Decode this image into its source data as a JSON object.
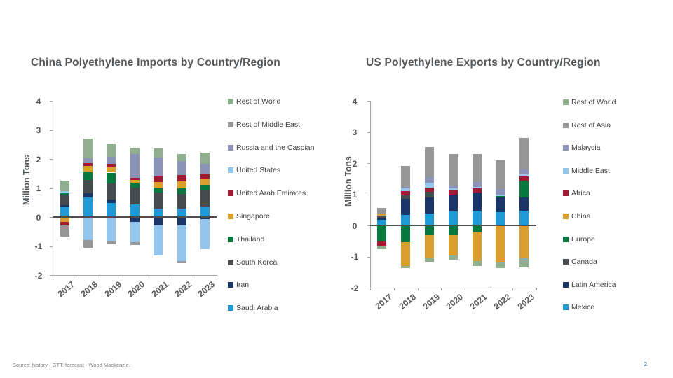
{
  "footer": {
    "source": "Source: history - GTT,  forecast - Wood Mackenzie.",
    "page_number": "2"
  },
  "colors": {
    "title_text": "#54575A",
    "axis_text": "#54575A",
    "legend_text": "#404040",
    "axis_line": "#A6A6A6",
    "zero_line": "#4D4D4D",
    "source_text": "#808080",
    "page_number_text": "#2E74B5"
  },
  "chart_data": [
    {
      "type": "bar",
      "stacked": true,
      "title": "China Polyethylene Imports by Country/Region",
      "ylabel": "Million Tons",
      "xlabel": "",
      "ylim": [
        -2,
        4
      ],
      "yticks": [
        4,
        3,
        2,
        1,
        0,
        -1,
        -2
      ],
      "grid": false,
      "legend_position": "right",
      "categories": [
        "2017",
        "2018",
        "2019",
        "2020",
        "2021",
        "2022",
        "2023"
      ],
      "series_note": "series listed in legend order (top to bottom); bars stack bottom-up in reverse of this order; values in million tons, negatives plotted below zero",
      "series": [
        {
          "name": "Rest of World",
          "color": "#8FAF8F",
          "values": [
            0.38,
            0.67,
            0.44,
            0.21,
            0.33,
            0.24,
            0.37
          ]
        },
        {
          "name": "Rest of Middle East",
          "color": "#969696",
          "values": [
            -0.4,
            -0.25,
            -0.13,
            -0.1,
            0,
            -0.08,
            0
          ]
        },
        {
          "name": "Russia and the Caspian",
          "color": "#8C93B8",
          "values": [
            0,
            0.17,
            0.24,
            0.81,
            0.64,
            0.48,
            0.38
          ]
        },
        {
          "name": "United States",
          "color": "#94C5EC",
          "values": [
            0.07,
            -0.8,
            -0.82,
            -0.68,
            -1.02,
            -1.22,
            -1.04
          ]
        },
        {
          "name": "United Arab Emirates",
          "color": "#A01B32",
          "values": [
            -0.1,
            0.1,
            0.1,
            0.08,
            0.2,
            0.2,
            0.13
          ]
        },
        {
          "name": "Singapore",
          "color": "#D99E2B",
          "values": [
            -0.18,
            0.2,
            0.21,
            0.1,
            0.18,
            0.26,
            0.21
          ]
        },
        {
          "name": "Thailand",
          "color": "#077940",
          "values": [
            0.05,
            0.28,
            0.37,
            0.16,
            0.18,
            0.18,
            0.2
          ]
        },
        {
          "name": "South Korea",
          "color": "#474B4E",
          "values": [
            0.34,
            0.44,
            0.56,
            0.58,
            0.56,
            0.5,
            0.56
          ]
        },
        {
          "name": "Iran",
          "color": "#1A3668",
          "values": [
            0.09,
            0.16,
            0.12,
            -0.18,
            -0.3,
            -0.3,
            -0.08
          ]
        },
        {
          "name": "Saudi Arabia",
          "color": "#1E9AD6",
          "values": [
            0.33,
            0.67,
            0.48,
            0.44,
            0.28,
            0.3,
            0.36
          ]
        }
      ]
    },
    {
      "type": "bar",
      "stacked": true,
      "title": "US Polyethylene Exports by Country/Region",
      "ylabel": "Million Tons",
      "xlabel": "",
      "ylim": [
        -2,
        4
      ],
      "yticks": [
        4,
        3,
        2,
        1,
        0,
        -1,
        -2
      ],
      "grid": false,
      "legend_position": "right",
      "categories": [
        "2017",
        "2018",
        "2019",
        "2020",
        "2021",
        "2022",
        "2023"
      ],
      "series_note": "series listed in legend order (top to bottom); bars stack bottom-up in reverse of this order; values in million tons, negatives plotted below zero",
      "series": [
        {
          "name": "Rest of World",
          "color": "#8FAF8F",
          "values": [
            -0.12,
            -0.07,
            -0.13,
            -0.15,
            -0.16,
            -0.18,
            -0.3
          ]
        },
        {
          "name": "Rest of Asia",
          "color": "#969696",
          "values": [
            0.2,
            0.67,
            0.97,
            1.01,
            0.9,
            0.91,
            1.02
          ]
        },
        {
          "name": "Malaysia",
          "color": "#8C93B8",
          "values": [
            0,
            0.05,
            0.19,
            0.09,
            0.15,
            0.18,
            0.17
          ]
        },
        {
          "name": "Middle East",
          "color": "#94C5EC",
          "values": [
            0,
            0.08,
            0.15,
            0.07,
            0.05,
            0.05,
            0.05
          ]
        },
        {
          "name": "Africa",
          "color": "#A01B32",
          "values": [
            -0.15,
            0.12,
            0.13,
            0.14,
            0.13,
            0,
            0.17
          ]
        },
        {
          "name": "China",
          "color": "#D99E2B",
          "values": [
            0.06,
            -0.75,
            -0.72,
            -0.65,
            -0.92,
            -1.2,
            -1.05
          ]
        },
        {
          "name": "Europe",
          "color": "#077940",
          "values": [
            -0.5,
            -0.55,
            -0.32,
            -0.31,
            -0.22,
            0.05,
            0.5
          ]
        },
        {
          "name": "Canada",
          "color": "#474B4E",
          "values": [
            0.06,
            0.13,
            0.17,
            0,
            0,
            0,
            0
          ]
        },
        {
          "name": "Latin America",
          "color": "#1A3668",
          "values": [
            0.06,
            0.52,
            0.53,
            0.52,
            0.59,
            0.47,
            0.44
          ]
        },
        {
          "name": "Mexico",
          "color": "#1E9AD6",
          "values": [
            0.18,
            0.34,
            0.38,
            0.46,
            0.47,
            0.42,
            0.47
          ]
        }
      ]
    }
  ]
}
